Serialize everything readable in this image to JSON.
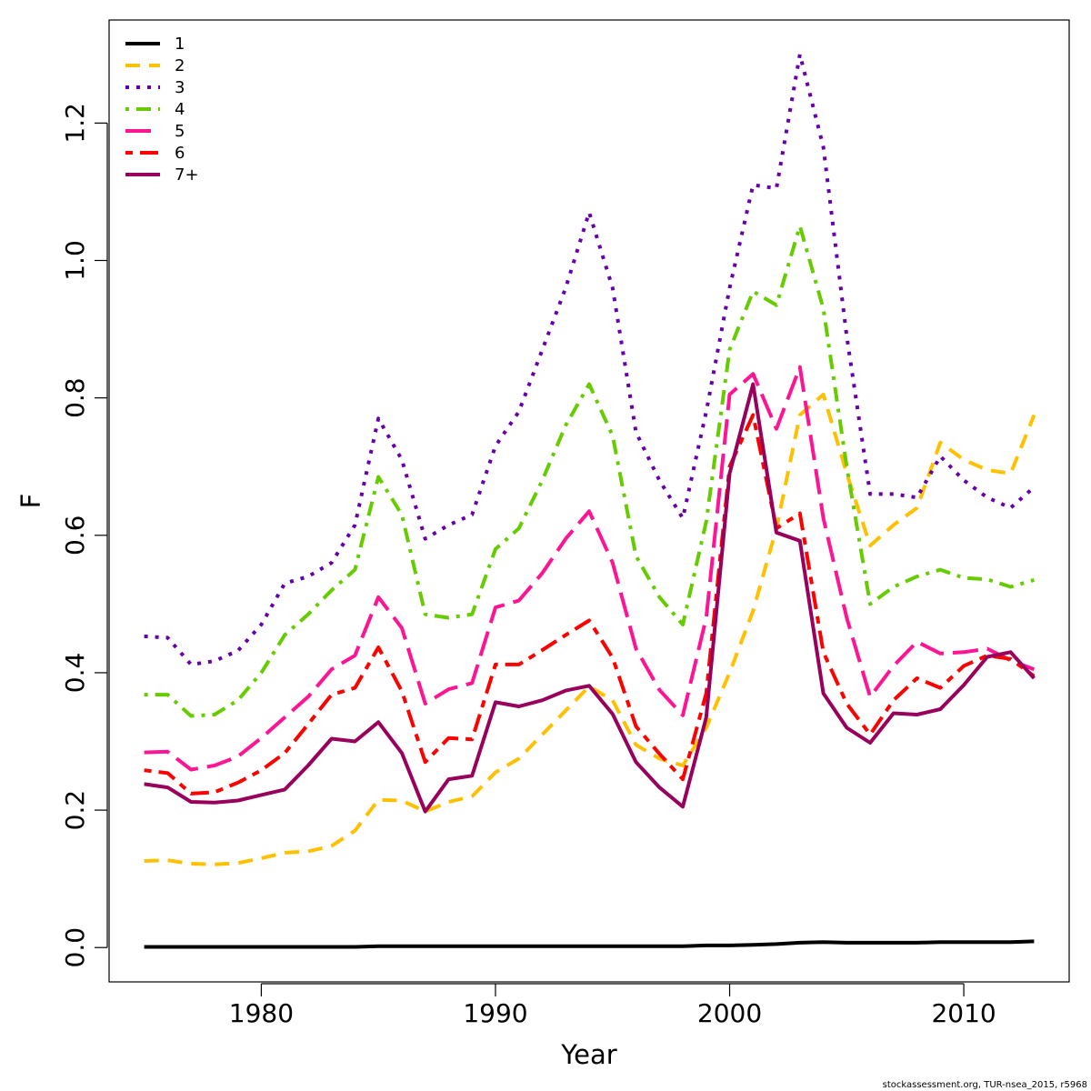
{
  "chart_data": {
    "type": "line",
    "xlabel": "Year",
    "ylabel": "F",
    "xlim": [
      1973.5,
      2014.5
    ],
    "ylim": [
      -0.05,
      1.35
    ],
    "xticks": [
      1980,
      1990,
      2000,
      2010
    ],
    "yticks": [
      0.0,
      0.2,
      0.4,
      0.6,
      0.8,
      1.0,
      1.2
    ],
    "ytick_labels": [
      "0.0",
      "0.2",
      "0.4",
      "0.6",
      "0.8",
      "1.0",
      "1.2"
    ],
    "legend_position": "top-left",
    "grid": false,
    "x": [
      1975,
      1976,
      1977,
      1978,
      1979,
      1980,
      1981,
      1982,
      1983,
      1984,
      1985,
      1986,
      1987,
      1988,
      1989,
      1990,
      1991,
      1992,
      1993,
      1994,
      1995,
      1996,
      1997,
      1998,
      1999,
      2000,
      2001,
      2002,
      2003,
      2004,
      2005,
      2006,
      2007,
      2008,
      2009,
      2010,
      2011,
      2012,
      2013
    ],
    "series": [
      {
        "name": "1",
        "color": "#000000",
        "dash": "solid",
        "values": [
          0.001,
          0.001,
          0.001,
          0.001,
          0.001,
          0.001,
          0.001,
          0.001,
          0.001,
          0.001,
          0.002,
          0.002,
          0.002,
          0.002,
          0.002,
          0.002,
          0.002,
          0.002,
          0.002,
          0.002,
          0.002,
          0.002,
          0.002,
          0.002,
          0.003,
          0.003,
          0.004,
          0.005,
          0.007,
          0.008,
          0.007,
          0.007,
          0.007,
          0.007,
          0.008,
          0.008,
          0.008,
          0.008,
          0.009
        ]
      },
      {
        "name": "2",
        "color": "#FFC000",
        "dash": "dashed",
        "values": [
          0.126,
          0.127,
          0.122,
          0.121,
          0.123,
          0.13,
          0.138,
          0.14,
          0.148,
          0.17,
          0.215,
          0.214,
          0.198,
          0.212,
          0.22,
          0.255,
          0.275,
          0.31,
          0.345,
          0.38,
          0.36,
          0.295,
          0.275,
          0.265,
          0.32,
          0.4,
          0.49,
          0.61,
          0.775,
          0.805,
          0.69,
          0.585,
          0.615,
          0.64,
          0.735,
          0.71,
          0.695,
          0.69,
          0.775
        ]
      },
      {
        "name": "3",
        "color": "#6600AA",
        "dash": "dotted",
        "values": [
          0.453,
          0.451,
          0.412,
          0.417,
          0.432,
          0.47,
          0.53,
          0.54,
          0.56,
          0.615,
          0.77,
          0.71,
          0.595,
          0.615,
          0.63,
          0.73,
          0.78,
          0.87,
          0.96,
          1.07,
          0.96,
          0.75,
          0.68,
          0.625,
          0.78,
          0.96,
          1.11,
          1.105,
          1.3,
          1.165,
          0.89,
          0.66,
          0.66,
          0.655,
          0.715,
          0.68,
          0.655,
          0.64,
          0.67
        ]
      },
      {
        "name": "4",
        "color": "#66CC00",
        "dash": "dotdash",
        "values": [
          0.368,
          0.368,
          0.337,
          0.339,
          0.36,
          0.4,
          0.455,
          0.485,
          0.52,
          0.55,
          0.685,
          0.63,
          0.485,
          0.48,
          0.485,
          0.58,
          0.61,
          0.68,
          0.76,
          0.82,
          0.745,
          0.57,
          0.51,
          0.47,
          0.62,
          0.87,
          0.955,
          0.935,
          1.05,
          0.93,
          0.7,
          0.5,
          0.525,
          0.54,
          0.55,
          0.538,
          0.536,
          0.525,
          0.535
        ]
      },
      {
        "name": "5",
        "color": "#FF1493",
        "dash": "longdash",
        "values": [
          0.284,
          0.285,
          0.259,
          0.265,
          0.278,
          0.305,
          0.335,
          0.365,
          0.405,
          0.425,
          0.51,
          0.465,
          0.355,
          0.376,
          0.385,
          0.495,
          0.505,
          0.545,
          0.595,
          0.635,
          0.56,
          0.435,
          0.375,
          0.338,
          0.48,
          0.805,
          0.835,
          0.755,
          0.845,
          0.625,
          0.48,
          0.365,
          0.41,
          0.445,
          0.428,
          0.43,
          0.435,
          0.418,
          0.405
        ]
      },
      {
        "name": "6",
        "color": "#FF0000",
        "dash": "twodash",
        "values": [
          0.258,
          0.254,
          0.224,
          0.226,
          0.24,
          0.258,
          0.283,
          0.325,
          0.368,
          0.378,
          0.437,
          0.373,
          0.27,
          0.305,
          0.303,
          0.412,
          0.412,
          0.433,
          0.455,
          0.476,
          0.422,
          0.322,
          0.282,
          0.245,
          0.37,
          0.7,
          0.775,
          0.61,
          0.632,
          0.43,
          0.355,
          0.31,
          0.36,
          0.392,
          0.378,
          0.41,
          0.425,
          0.42,
          0.395
        ]
      },
      {
        "name": "7+",
        "color": "#99005C",
        "dash": "solid",
        "values": [
          0.238,
          0.233,
          0.212,
          0.211,
          0.214,
          0.222,
          0.23,
          0.265,
          0.304,
          0.3,
          0.328,
          0.283,
          0.198,
          0.245,
          0.25,
          0.357,
          0.351,
          0.36,
          0.374,
          0.381,
          0.34,
          0.27,
          0.233,
          0.205,
          0.335,
          0.69,
          0.82,
          0.604,
          0.592,
          0.37,
          0.32,
          0.298,
          0.341,
          0.339,
          0.347,
          0.382,
          0.423,
          0.43,
          0.392
        ]
      }
    ]
  },
  "credit": "stockassessment.org, TUR-nsea_2015, r5968"
}
